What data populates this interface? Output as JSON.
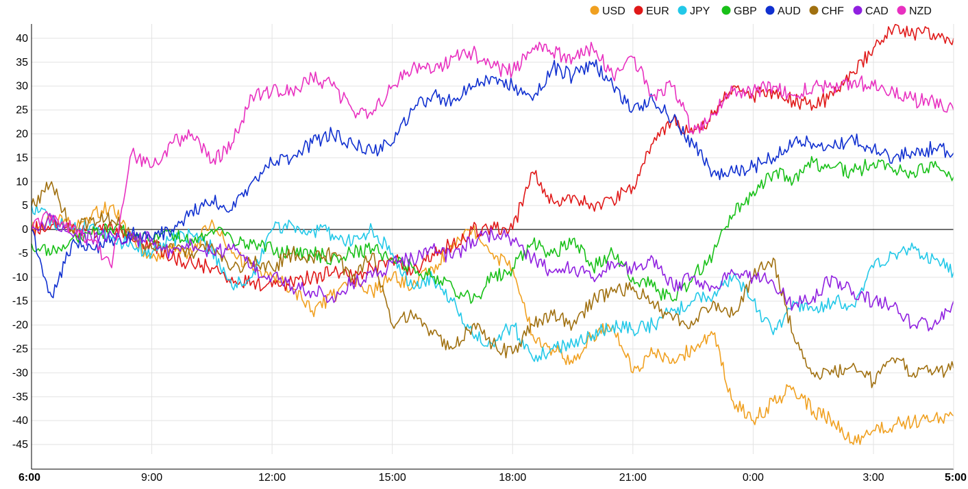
{
  "chart_data": {
    "type": "line",
    "title": "",
    "xlabel": "",
    "ylabel": "",
    "x_ticks": [
      "6:00",
      "9:00",
      "12:00",
      "15:00",
      "18:00",
      "21:00",
      "0:00",
      "3:00",
      "5:00"
    ],
    "x_tick_hours": [
      0,
      3,
      6,
      9,
      12,
      15,
      18,
      21,
      23
    ],
    "x_range": [
      0,
      23
    ],
    "ylim": [
      -47,
      43
    ],
    "y_ticks": [
      40,
      35,
      30,
      25,
      20,
      15,
      10,
      5,
      0,
      -5,
      -10,
      -15,
      -20,
      -25,
      -30,
      -35,
      -40,
      -45
    ],
    "grid": true,
    "legend_position": "top-right",
    "series": [
      {
        "name": "USD",
        "color": "#f0a020",
        "x": [
          0,
          0.5,
          1,
          1.5,
          2,
          2.5,
          3,
          3.5,
          4,
          4.5,
          5,
          5.5,
          6,
          6.5,
          7,
          7.5,
          8,
          8.5,
          9,
          9.5,
          10,
          10.5,
          11,
          11.5,
          12,
          12.5,
          13,
          13.5,
          14,
          14.5,
          15,
          15.5,
          16,
          16.5,
          17,
          17.5,
          18,
          18.5,
          19,
          19.5,
          20,
          20.5,
          21,
          21.5,
          22,
          22.5,
          23
        ],
        "y": [
          0,
          2,
          1,
          3,
          5,
          -2,
          -6,
          -4,
          -5,
          2,
          -5,
          -8,
          -10,
          -12,
          -17,
          -14,
          -11,
          -13,
          -10,
          -12,
          -8,
          -4,
          0,
          -5,
          -8,
          -22,
          -25,
          -28,
          -22,
          -20,
          -30,
          -26,
          -27,
          -25,
          -22,
          -36,
          -40,
          -36,
          -33,
          -38,
          -40,
          -45,
          -42,
          -41,
          -40,
          -40,
          -39
        ]
      },
      {
        "name": "EUR",
        "color": "#e01818",
        "x": [
          0,
          0.5,
          1,
          1.5,
          2,
          2.5,
          3,
          3.5,
          4,
          4.5,
          5,
          5.5,
          6,
          6.5,
          7,
          7.5,
          8,
          8.5,
          9,
          9.5,
          10,
          10.5,
          11,
          11.5,
          12,
          12.5,
          13,
          13.5,
          14,
          14.5,
          15,
          15.5,
          16,
          16.5,
          17,
          17.5,
          18,
          18.5,
          19,
          19.5,
          20,
          20.5,
          21,
          21.5,
          22,
          22.5,
          23
        ],
        "y": [
          0,
          1,
          0,
          -1,
          1,
          -2,
          -3,
          -6,
          -7,
          -8,
          -10,
          -11,
          -12,
          -11,
          -10,
          -9,
          -10,
          -8,
          -6,
          -9,
          -5,
          -3,
          0,
          0,
          0,
          12,
          6,
          7,
          5,
          6,
          9,
          18,
          23,
          20,
          24,
          30,
          28,
          29,
          27,
          26,
          28,
          33,
          38,
          42,
          41,
          41,
          40
        ]
      },
      {
        "name": "JPY",
        "color": "#22c8e8",
        "x": [
          0,
          0.5,
          1,
          1.5,
          2,
          2.5,
          3,
          3.5,
          4,
          4.5,
          5,
          5.5,
          6,
          6.5,
          7,
          7.5,
          8,
          8.5,
          9,
          9.5,
          10,
          10.5,
          11,
          11.5,
          12,
          12.5,
          13,
          13.5,
          14,
          14.5,
          15,
          15.5,
          16,
          16.5,
          17,
          17.5,
          18,
          18.5,
          19,
          19.5,
          20,
          20.5,
          21,
          21.5,
          22,
          22.5,
          23
        ],
        "y": [
          5,
          2,
          0,
          1,
          -2,
          -3,
          -5,
          -2,
          -1,
          -4,
          -12,
          -10,
          0,
          1,
          0,
          -1,
          -3,
          0,
          -5,
          -12,
          -10,
          -15,
          -22,
          -24,
          -20,
          -27,
          -25,
          -24,
          -22,
          -20,
          -21,
          -20,
          -17,
          -15,
          -14,
          -10,
          -15,
          -22,
          -15,
          -17,
          -15,
          -16,
          -8,
          -5,
          -4,
          -6,
          -9
        ]
      },
      {
        "name": "GBP",
        "color": "#18c018",
        "x": [
          0,
          0.5,
          1,
          1.5,
          2,
          2.5,
          3,
          3.5,
          4,
          4.5,
          5,
          5.5,
          6,
          6.5,
          7,
          7.5,
          8,
          8.5,
          9,
          9.5,
          10,
          10.5,
          11,
          11.5,
          12,
          12.5,
          13,
          13.5,
          14,
          14.5,
          15,
          15.5,
          16,
          16.5,
          17,
          17.5,
          18,
          18.5,
          19,
          19.5,
          20,
          20.5,
          21,
          21.5,
          22,
          22.5,
          23
        ],
        "y": [
          -3,
          -5,
          -2,
          -1,
          0,
          -1,
          -2,
          -1,
          -2,
          0,
          -2,
          -3,
          -4,
          -5,
          -5,
          -6,
          -5,
          -4,
          -6,
          -8,
          -10,
          -12,
          -15,
          -10,
          -8,
          -3,
          -5,
          -2,
          -8,
          -5,
          -10,
          -12,
          -15,
          -10,
          -5,
          3,
          8,
          12,
          10,
          14,
          13,
          12,
          14,
          12,
          12,
          13,
          11
        ]
      },
      {
        "name": "AUD",
        "color": "#1030d0",
        "x": [
          0,
          0.5,
          1,
          1.5,
          2,
          2.5,
          3,
          3.5,
          4,
          4.5,
          5,
          5.5,
          6,
          6.5,
          7,
          7.5,
          8,
          8.5,
          9,
          9.5,
          10,
          10.5,
          11,
          11.5,
          12,
          12.5,
          13,
          13.5,
          14,
          14.5,
          15,
          15.5,
          16,
          16.5,
          17,
          17.5,
          18,
          18.5,
          19,
          19.5,
          20,
          20.5,
          21,
          21.5,
          22,
          22.5,
          23
        ],
        "y": [
          0,
          -14,
          -3,
          -4,
          -2,
          -1,
          -2,
          0,
          4,
          6,
          4,
          10,
          14,
          15,
          18,
          20,
          18,
          16,
          18,
          25,
          28,
          27,
          30,
          32,
          30,
          27,
          34,
          32,
          35,
          30,
          25,
          27,
          23,
          18,
          12,
          12,
          13,
          15,
          18,
          18,
          17,
          19,
          17,
          15,
          16,
          17,
          16
        ]
      },
      {
        "name": "CHF",
        "color": "#a07010",
        "x": [
          0,
          0.5,
          1,
          1.5,
          2,
          2.5,
          3,
          3.5,
          4,
          4.5,
          5,
          5.5,
          6,
          6.5,
          7,
          7.5,
          8,
          8.5,
          9,
          9.5,
          10,
          10.5,
          11,
          11.5,
          12,
          12.5,
          13,
          13.5,
          14,
          14.5,
          15,
          15.5,
          16,
          16.5,
          17,
          17.5,
          18,
          18.5,
          19,
          19.5,
          20,
          20.5,
          21,
          21.5,
          22,
          22.5,
          23
        ],
        "y": [
          5,
          10,
          0,
          2,
          2,
          -1,
          -4,
          -3,
          -5,
          -3,
          -8,
          -7,
          -8,
          -5,
          -6,
          -5,
          -10,
          -5,
          -20,
          -18,
          -22,
          -25,
          -20,
          -24,
          -26,
          -20,
          -18,
          -20,
          -15,
          -13,
          -12,
          -15,
          -19,
          -20,
          -15,
          -18,
          -10,
          -6,
          -22,
          -30,
          -30,
          -28,
          -32,
          -27,
          -30,
          -30,
          -29
        ]
      },
      {
        "name": "CAD",
        "color": "#9020e0",
        "x": [
          0,
          0.5,
          1,
          1.5,
          2,
          2.5,
          3,
          3.5,
          4,
          4.5,
          5,
          5.5,
          6,
          6.5,
          7,
          7.5,
          8,
          8.5,
          9,
          9.5,
          10,
          10.5,
          11,
          11.5,
          12,
          12.5,
          13,
          13.5,
          14,
          14.5,
          15,
          15.5,
          16,
          16.5,
          17,
          17.5,
          18,
          18.5,
          19,
          19.5,
          20,
          20.5,
          21,
          21.5,
          22,
          22.5,
          23
        ],
        "y": [
          0,
          2,
          -1,
          -2,
          -1,
          -2,
          -2,
          -5,
          -3,
          -5,
          -4,
          -8,
          -10,
          -12,
          -13,
          -14,
          -11,
          -10,
          -7,
          -6,
          -4,
          -6,
          -2,
          -1,
          -2,
          -6,
          -9,
          -8,
          -10,
          -7,
          -8,
          -6,
          -12,
          -10,
          -12,
          -9,
          -10,
          -11,
          -16,
          -14,
          -10,
          -13,
          -15,
          -16,
          -20,
          -20,
          -15
        ]
      },
      {
        "name": "NZD",
        "color": "#e830c0",
        "x": [
          0,
          0.5,
          1,
          1.5,
          2,
          2.5,
          3,
          3.5,
          4,
          4.5,
          5,
          5.5,
          6,
          6.5,
          7,
          7.5,
          8,
          8.5,
          9,
          9.5,
          10,
          10.5,
          11,
          11.5,
          12,
          12.5,
          13,
          13.5,
          14,
          14.5,
          15,
          15.5,
          16,
          16.5,
          17,
          17.5,
          18,
          18.5,
          19,
          19.5,
          20,
          20.5,
          21,
          21.5,
          22,
          22.5,
          23
        ],
        "y": [
          0,
          3,
          0,
          -2,
          -8,
          16,
          13,
          18,
          20,
          14,
          18,
          28,
          29,
          29,
          32,
          30,
          25,
          24,
          30,
          34,
          33,
          36,
          37,
          34,
          33,
          38,
          37,
          36,
          38,
          32,
          36,
          28,
          30,
          20,
          24,
          29,
          29,
          30,
          28,
          30,
          30,
          31,
          30,
          29,
          27,
          27,
          25
        ]
      }
    ]
  }
}
